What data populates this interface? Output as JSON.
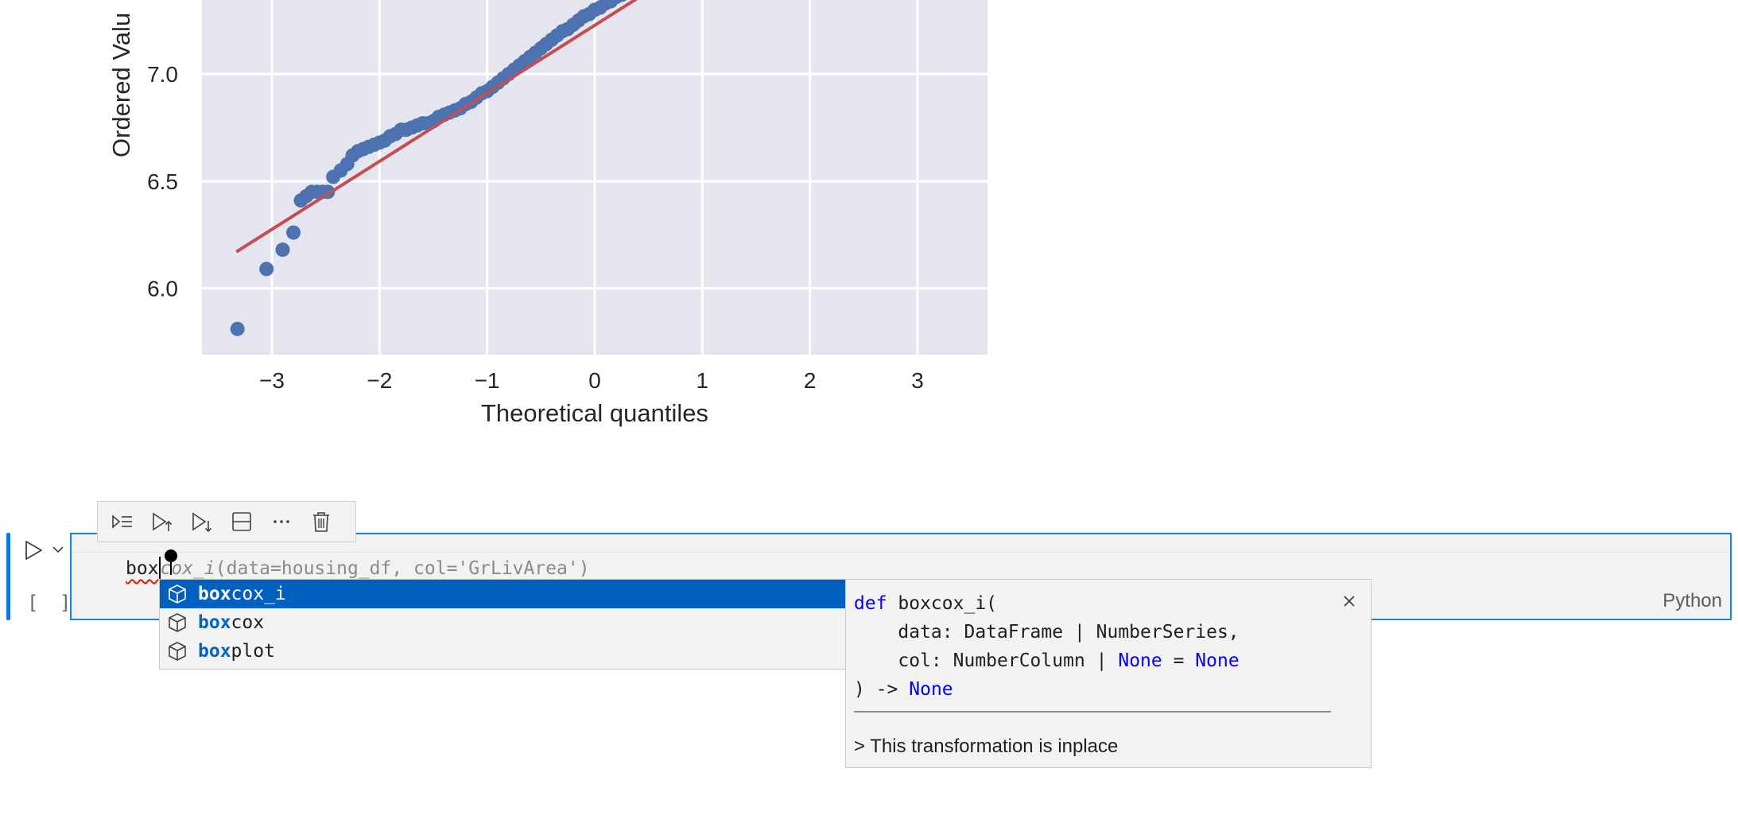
{
  "chart_data": {
    "type": "scatter",
    "xlabel": "Theoretical quantiles",
    "ylabel": "Ordered Valu",
    "xlim": [
      -3.65,
      3.65
    ],
    "ylim": [
      5.69,
      7.42
    ],
    "xticks": [
      {
        "value": -3,
        "label": "−3"
      },
      {
        "value": -2,
        "label": "−2"
      },
      {
        "value": -1,
        "label": "−1"
      },
      {
        "value": 0,
        "label": "0"
      },
      {
        "value": 1,
        "label": "1"
      },
      {
        "value": 2,
        "label": "2"
      },
      {
        "value": 3,
        "label": "3"
      }
    ],
    "yticks": [
      {
        "value": 6.0,
        "label": "6.0"
      },
      {
        "value": 6.5,
        "label": "6.5"
      },
      {
        "value": 7.0,
        "label": "7.0"
      }
    ],
    "grid": true,
    "background": "#e5e5ef",
    "point_color": "#4c72b0",
    "line_color": "#c44e52",
    "fit_line": {
      "x": [
        -3.33,
        0.7
      ],
      "y": [
        6.17,
        7.45
      ]
    },
    "series": [
      {
        "x": [
          -3.32,
          -3.05,
          -2.9,
          -2.8,
          -2.73,
          -2.68,
          -2.63,
          -2.58,
          -2.53,
          -2.48,
          -2.43,
          -2.36,
          -2.3,
          -2.25,
          -2.2,
          -2.15,
          -2.1,
          -2.05,
          -2.0,
          -1.95,
          -1.9,
          -1.85,
          -1.8,
          -1.75,
          -1.7,
          -1.65,
          -1.6,
          -1.55,
          -1.5,
          -1.45,
          -1.4,
          -1.35,
          -1.3,
          -1.25,
          -1.2,
          -1.15,
          -1.1,
          -1.05,
          -1.0,
          -0.95,
          -0.9,
          -0.85,
          -0.8,
          -0.75,
          -0.7,
          -0.65,
          -0.6,
          -0.55,
          -0.5,
          -0.45,
          -0.4,
          -0.35,
          -0.3,
          -0.25,
          -0.2,
          -0.15,
          -0.1,
          -0.05,
          0.0,
          0.05,
          0.1,
          0.15,
          0.2,
          0.25,
          0.3,
          0.35,
          0.4,
          0.45,
          0.5,
          0.6
        ],
        "y": [
          5.81,
          6.09,
          6.18,
          6.26,
          6.41,
          6.43,
          6.45,
          6.45,
          6.45,
          6.45,
          6.52,
          6.55,
          6.58,
          6.62,
          6.64,
          6.65,
          6.66,
          6.67,
          6.68,
          6.69,
          6.71,
          6.72,
          6.74,
          6.74,
          6.75,
          6.76,
          6.77,
          6.77,
          6.78,
          6.8,
          6.81,
          6.82,
          6.83,
          6.84,
          6.86,
          6.87,
          6.89,
          6.91,
          6.92,
          6.94,
          6.96,
          6.98,
          7.0,
          7.02,
          7.04,
          7.06,
          7.08,
          7.1,
          7.12,
          7.14,
          7.16,
          7.18,
          7.2,
          7.21,
          7.23,
          7.25,
          7.27,
          7.28,
          7.3,
          7.31,
          7.33,
          7.34,
          7.36,
          7.37,
          7.39,
          7.4,
          7.41,
          7.42,
          7.43,
          7.46
        ]
      }
    ]
  },
  "toolbar": {
    "buttons": [
      {
        "name": "run-by-line-button",
        "icon": "run-by-line-icon"
      },
      {
        "name": "execute-above-button",
        "icon": "execute-above-icon"
      },
      {
        "name": "execute-below-button",
        "icon": "execute-below-icon"
      },
      {
        "name": "split-cell-button",
        "icon": "split-cell-icon"
      },
      {
        "name": "more-actions-button",
        "icon": "ellipsis-icon"
      },
      {
        "name": "delete-cell-button",
        "icon": "trash-icon"
      }
    ]
  },
  "cell": {
    "exec_count": "[ ]",
    "typed": "box",
    "ghost_italic": "cox_i",
    "ghost_rest": "(data=housing_df, col='GrLivArea')",
    "language": "Python"
  },
  "suggestions": [
    {
      "match": "box",
      "rest": "cox_i",
      "selected": true
    },
    {
      "match": "box",
      "rest": "cox",
      "selected": false
    },
    {
      "match": "box",
      "rest": "plot",
      "selected": false
    }
  ],
  "docs": {
    "l1_kw": "def",
    "l1_rest": " boxcox_i(",
    "l2": "    data: DataFrame | NumberSeries,",
    "l3_a": "    col: NumberColumn | ",
    "l3_kw1": "None",
    "l3_b": " = ",
    "l3_kw2": "None",
    "l4_a": ") -> ",
    "l4_kw": "None",
    "description": "> This transformation is inplace"
  }
}
